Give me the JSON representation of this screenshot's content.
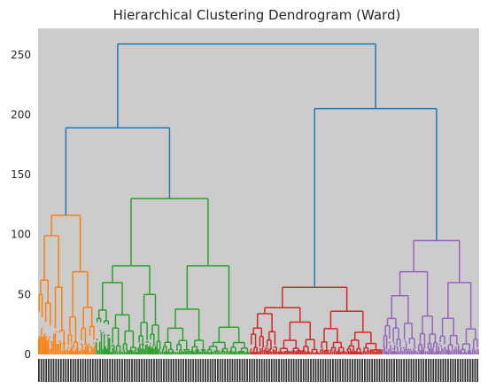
{
  "chart_data": {
    "type": "dendrogram",
    "title": "Hierarchical Clustering Dendrogram (Ward)",
    "xlabel": "",
    "ylabel": "",
    "ylim": [
      0,
      272
    ],
    "yticks": [
      0,
      50,
      100,
      150,
      200,
      250
    ],
    "grid": false,
    "background": "#cccccc",
    "root_color": "#1f77b4",
    "top_links": [
      {
        "name": "root",
        "height": 259,
        "color": "#1f77b4"
      },
      {
        "name": "left",
        "height": 189,
        "color": "#1f77b4"
      },
      {
        "name": "right",
        "height": 205,
        "color": "#1f77b4"
      }
    ],
    "clusters": [
      {
        "color": "#ff7f0e",
        "merge_height": 116,
        "sub_merges": [
          99,
          69,
          62,
          56,
          50,
          43,
          36,
          31,
          27,
          24,
          22,
          20,
          18
        ],
        "leaves_extent": [
          0.0,
          0.13
        ]
      },
      {
        "color": "#2ca02c",
        "merge_height": 130,
        "sub_merges": [
          74,
          74,
          60,
          50,
          37,
          33,
          30,
          28,
          27,
          27,
          26,
          25,
          22
        ],
        "leaves_extent": [
          0.13,
          0.48
        ]
      },
      {
        "color": "#d62728",
        "merge_height": 56,
        "sub_merges": [
          39,
          36,
          34,
          27,
          22,
          19,
          17,
          15
        ],
        "leaves_extent": [
          0.48,
          0.78
        ]
      },
      {
        "color": "#9467bd",
        "merge_height": 95,
        "sub_merges": [
          69,
          60,
          49,
          32,
          30,
          26,
          24,
          22
        ],
        "leaves_extent": [
          0.78,
          1.0
        ]
      }
    ]
  }
}
